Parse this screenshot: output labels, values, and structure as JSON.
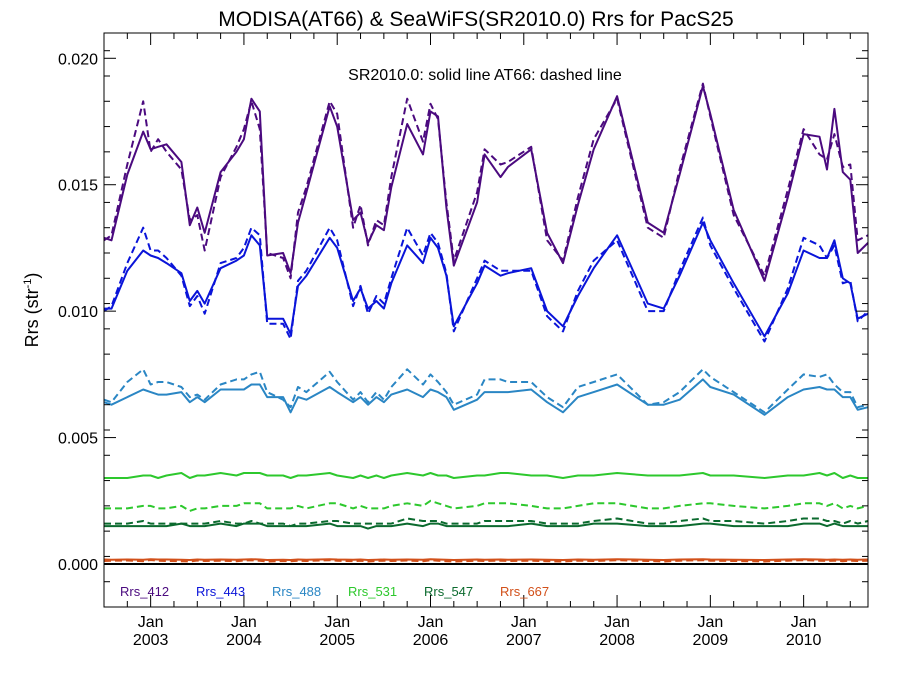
{
  "chart_data": {
    "type": "line",
    "title": "MODISA(AT66) & SeaWiFS(SR2010.0)  Rrs for PacS25",
    "annotation": "SR2010.0: solid line   AT66: dashed line",
    "ylabel": "Rrs (str",
    "ylabel_sup": "-1",
    "ylabel_close": ")",
    "ylim": [
      -0.0017,
      0.021
    ],
    "xlim": [
      2002.5,
      2010.69
    ],
    "yticks": [
      {
        "value": 0.0,
        "label": "0.000"
      },
      {
        "value": 0.005,
        "label": "0.005"
      },
      {
        "value": 0.01,
        "label": "0.010"
      },
      {
        "value": 0.015,
        "label": "0.015"
      },
      {
        "value": 0.02,
        "label": "0.020"
      }
    ],
    "xticks": [
      {
        "value": 2003.0,
        "label": "Jan",
        "year": "2003"
      },
      {
        "value": 2004.0,
        "label": "Jan",
        "year": "2004"
      },
      {
        "value": 2005.0,
        "label": "Jan",
        "year": "2005"
      },
      {
        "value": 2006.0,
        "label": "Jan",
        "year": "2006"
      },
      {
        "value": 2007.0,
        "label": "Jan",
        "year": "2007"
      },
      {
        "value": 2008.0,
        "label": "Jan",
        "year": "2008"
      },
      {
        "value": 2009.0,
        "label": "Jan",
        "year": "2009"
      },
      {
        "value": 2010.0,
        "label": "Jan",
        "year": "2010"
      }
    ],
    "x": [
      2002.5,
      2002.58,
      2002.75,
      2002.92,
      2003.0,
      2003.08,
      2003.17,
      2003.33,
      2003.42,
      2003.5,
      2003.58,
      2003.75,
      2003.92,
      2004.0,
      2004.08,
      2004.17,
      2004.25,
      2004.42,
      2004.5,
      2004.58,
      2004.67,
      2004.92,
      2005.0,
      2005.17,
      2005.25,
      2005.33,
      2005.42,
      2005.5,
      2005.58,
      2005.75,
      2005.92,
      2006.0,
      2006.08,
      2006.17,
      2006.25,
      2006.5,
      2006.58,
      2006.75,
      2006.83,
      2007.08,
      2007.25,
      2007.42,
      2007.58,
      2007.75,
      2008.0,
      2008.33,
      2008.5,
      2008.67,
      2008.92,
      2009.0,
      2009.25,
      2009.58,
      2009.83,
      2010.0,
      2010.17,
      2010.25,
      2010.33,
      2010.42,
      2010.5,
      2010.58,
      2010.69
    ],
    "series": [
      {
        "name": "Rrs_412",
        "color": "#4B0A7F",
        "solid": [
          0.0129,
          0.0128,
          0.0154,
          0.0171,
          0.0164,
          0.0165,
          0.0166,
          0.0159,
          0.0134,
          0.0141,
          0.0131,
          0.0155,
          0.0163,
          0.0168,
          0.0184,
          0.0179,
          0.0122,
          0.0123,
          0.0115,
          0.0135,
          0.0147,
          0.0181,
          0.0173,
          0.0136,
          0.0139,
          0.0127,
          0.0134,
          0.0132,
          0.0149,
          0.0174,
          0.0162,
          0.0179,
          0.0177,
          0.0141,
          0.0118,
          0.0143,
          0.0162,
          0.0153,
          0.0157,
          0.0164,
          0.0131,
          0.0119,
          0.0142,
          0.0164,
          0.0185,
          0.0135,
          0.0131,
          0.0154,
          0.0189,
          0.0178,
          0.014,
          0.0112,
          0.0145,
          0.017,
          0.0169,
          0.0156,
          0.018,
          0.0155,
          0.0152,
          0.0123,
          0.0127
        ],
        "dashed": [
          0.0128,
          0.013,
          0.0158,
          0.0183,
          0.0163,
          0.0168,
          0.0163,
          0.0156,
          0.0136,
          0.0138,
          0.0124,
          0.0153,
          0.0165,
          0.0172,
          0.0183,
          0.0172,
          0.0123,
          0.0121,
          0.0113,
          0.0139,
          0.0149,
          0.0183,
          0.0178,
          0.0133,
          0.0142,
          0.0126,
          0.0136,
          0.0134,
          0.0153,
          0.0184,
          0.0167,
          0.0182,
          0.0176,
          0.0143,
          0.012,
          0.0147,
          0.0164,
          0.0158,
          0.0159,
          0.0165,
          0.0128,
          0.012,
          0.0145,
          0.0168,
          0.0184,
          0.0133,
          0.0129,
          0.0156,
          0.019,
          0.0177,
          0.0138,
          0.0114,
          0.0148,
          0.0172,
          0.0162,
          0.016,
          0.017,
          0.0157,
          0.0158,
          0.0128,
          0.013
        ]
      },
      {
        "name": "Rrs_443",
        "color": "#0A14D9",
        "solid": [
          0.0101,
          0.0101,
          0.0116,
          0.0124,
          0.0122,
          0.0121,
          0.0119,
          0.0115,
          0.0104,
          0.0108,
          0.0103,
          0.0117,
          0.012,
          0.0122,
          0.013,
          0.0126,
          0.0097,
          0.0097,
          0.0091,
          0.011,
          0.0114,
          0.0129,
          0.0125,
          0.0104,
          0.0109,
          0.0101,
          0.0104,
          0.0101,
          0.0111,
          0.0126,
          0.0119,
          0.0129,
          0.0125,
          0.0114,
          0.0094,
          0.0111,
          0.0118,
          0.0114,
          0.0115,
          0.0117,
          0.01,
          0.0094,
          0.0106,
          0.0117,
          0.013,
          0.0103,
          0.0101,
          0.0114,
          0.0135,
          0.0128,
          0.0111,
          0.009,
          0.0107,
          0.0124,
          0.0121,
          0.0121,
          0.0128,
          0.0113,
          0.0111,
          0.0097,
          0.0099
        ],
        "dashed": [
          0.01,
          0.0102,
          0.0119,
          0.0133,
          0.0124,
          0.0124,
          0.0121,
          0.0114,
          0.0102,
          0.0106,
          0.0099,
          0.0119,
          0.0121,
          0.0125,
          0.0133,
          0.013,
          0.0095,
          0.0095,
          0.0089,
          0.0112,
          0.0116,
          0.0133,
          0.0128,
          0.0102,
          0.011,
          0.0099,
          0.0106,
          0.0103,
          0.0113,
          0.0133,
          0.0122,
          0.0131,
          0.0127,
          0.0115,
          0.0092,
          0.0113,
          0.012,
          0.0116,
          0.0116,
          0.0116,
          0.0098,
          0.0092,
          0.0108,
          0.012,
          0.0128,
          0.01,
          0.01,
          0.0116,
          0.0137,
          0.0126,
          0.0109,
          0.0088,
          0.0109,
          0.0129,
          0.0126,
          0.0121,
          0.0126,
          0.0111,
          0.0112,
          0.0096,
          0.01
        ]
      },
      {
        "name": "Rrs_488",
        "color": "#2A86C4",
        "solid": [
          0.0064,
          0.0063,
          0.0066,
          0.0069,
          0.0068,
          0.0067,
          0.0067,
          0.0068,
          0.0064,
          0.0066,
          0.0064,
          0.0069,
          0.0069,
          0.0069,
          0.0071,
          0.0071,
          0.0066,
          0.0066,
          0.006,
          0.0066,
          0.0065,
          0.007,
          0.0068,
          0.0064,
          0.0066,
          0.0063,
          0.0066,
          0.0064,
          0.0067,
          0.0069,
          0.0066,
          0.0069,
          0.0068,
          0.0066,
          0.0061,
          0.0065,
          0.0068,
          0.0068,
          0.0068,
          0.0069,
          0.0064,
          0.006,
          0.0066,
          0.0068,
          0.0071,
          0.0063,
          0.0063,
          0.0065,
          0.0073,
          0.007,
          0.0067,
          0.0059,
          0.0066,
          0.0069,
          0.007,
          0.0069,
          0.0069,
          0.0066,
          0.0066,
          0.0061,
          0.0062
        ],
        "dashed": [
          0.0065,
          0.0064,
          0.0072,
          0.0077,
          0.0071,
          0.0072,
          0.0072,
          0.007,
          0.0066,
          0.0067,
          0.0065,
          0.0071,
          0.0073,
          0.0073,
          0.0075,
          0.0076,
          0.0068,
          0.0065,
          0.0062,
          0.007,
          0.0068,
          0.0076,
          0.0072,
          0.0065,
          0.0068,
          0.0064,
          0.0068,
          0.0065,
          0.007,
          0.0077,
          0.0071,
          0.0075,
          0.0072,
          0.0068,
          0.0063,
          0.0067,
          0.0073,
          0.0073,
          0.0072,
          0.0072,
          0.0066,
          0.0062,
          0.007,
          0.0072,
          0.0075,
          0.0063,
          0.0064,
          0.0068,
          0.0077,
          0.0074,
          0.0068,
          0.006,
          0.0069,
          0.0075,
          0.0074,
          0.0075,
          0.0071,
          0.0068,
          0.0068,
          0.0062,
          0.0063
        ]
      },
      {
        "name": "Rrs_531",
        "color": "#2DC82D",
        "solid": [
          0.0034,
          0.0034,
          0.0034,
          0.0035,
          0.0035,
          0.0034,
          0.0035,
          0.0036,
          0.0034,
          0.0035,
          0.0035,
          0.0036,
          0.0035,
          0.0036,
          0.0036,
          0.0036,
          0.0035,
          0.0035,
          0.0034,
          0.0035,
          0.0035,
          0.0036,
          0.0035,
          0.0034,
          0.0035,
          0.0034,
          0.0035,
          0.0034,
          0.0035,
          0.0036,
          0.0035,
          0.0036,
          0.0035,
          0.0035,
          0.0034,
          0.0035,
          0.0035,
          0.0036,
          0.0036,
          0.0035,
          0.0035,
          0.0034,
          0.0035,
          0.0035,
          0.0036,
          0.0035,
          0.0035,
          0.0035,
          0.0036,
          0.0035,
          0.0035,
          0.0034,
          0.0035,
          0.0035,
          0.0036,
          0.0035,
          0.0036,
          0.0034,
          0.0035,
          0.0034,
          0.0034
        ],
        "dashed": [
          0.0022,
          0.0022,
          0.0022,
          0.0023,
          0.0023,
          0.0022,
          0.0022,
          0.0023,
          0.0021,
          0.0022,
          0.0022,
          0.0023,
          0.0023,
          0.0024,
          0.0024,
          0.0024,
          0.0022,
          0.0022,
          0.0022,
          0.0023,
          0.0022,
          0.0024,
          0.0024,
          0.0022,
          0.0023,
          0.0022,
          0.0022,
          0.0022,
          0.0023,
          0.0024,
          0.0023,
          0.0025,
          0.0024,
          0.0023,
          0.0022,
          0.0023,
          0.0024,
          0.0024,
          0.0024,
          0.0023,
          0.0022,
          0.0022,
          0.0023,
          0.0024,
          0.0024,
          0.0022,
          0.0022,
          0.0023,
          0.0024,
          0.0024,
          0.0023,
          0.0022,
          0.0023,
          0.0024,
          0.0024,
          0.0023,
          0.0024,
          0.0022,
          0.0023,
          0.0022,
          0.0023
        ]
      },
      {
        "name": "Rrs_547",
        "color": "#0B6A2E",
        "solid": [
          0.0015,
          0.0015,
          0.0015,
          0.0015,
          0.0015,
          0.0015,
          0.0015,
          0.0016,
          0.0015,
          0.0015,
          0.0015,
          0.0016,
          0.0015,
          0.0016,
          0.0016,
          0.0016,
          0.0015,
          0.0015,
          0.0015,
          0.0015,
          0.0015,
          0.0016,
          0.0015,
          0.0015,
          0.0015,
          0.0014,
          0.0015,
          0.0015,
          0.0015,
          0.0016,
          0.0015,
          0.0016,
          0.0016,
          0.0015,
          0.0015,
          0.0015,
          0.0015,
          0.0015,
          0.0015,
          0.0016,
          0.0015,
          0.0015,
          0.0015,
          0.0016,
          0.0016,
          0.0015,
          0.0015,
          0.0015,
          0.0016,
          0.0016,
          0.0015,
          0.0015,
          0.0015,
          0.0016,
          0.0016,
          0.0015,
          0.0016,
          0.0015,
          0.0015,
          0.0015,
          0.0015
        ],
        "dashed": [
          0.0016,
          0.0016,
          0.0016,
          0.0017,
          0.0016,
          0.0016,
          0.0016,
          0.0016,
          0.0016,
          0.0016,
          0.0016,
          0.0017,
          0.0016,
          0.0016,
          0.0017,
          0.0016,
          0.0016,
          0.0016,
          0.0015,
          0.0016,
          0.0016,
          0.0017,
          0.0017,
          0.0016,
          0.0016,
          0.0016,
          0.0016,
          0.0016,
          0.0016,
          0.0018,
          0.0017,
          0.0017,
          0.0017,
          0.0016,
          0.0016,
          0.0016,
          0.0017,
          0.0017,
          0.0017,
          0.0017,
          0.0016,
          0.0016,
          0.0016,
          0.0017,
          0.0018,
          0.0016,
          0.0016,
          0.0017,
          0.0018,
          0.0017,
          0.0017,
          0.0016,
          0.0017,
          0.0018,
          0.0018,
          0.0017,
          0.0017,
          0.0016,
          0.0017,
          0.0016,
          0.0017
        ]
      },
      {
        "name": "Rrs_667",
        "color": "#D2501A",
        "solid": [
          0.00018,
          0.00017,
          0.00018,
          0.00017,
          0.00019,
          0.00018,
          0.00018,
          0.00017,
          0.00016,
          0.00018,
          0.00017,
          0.00018,
          0.00017,
          0.00018,
          0.00019,
          0.00018,
          0.00016,
          0.00017,
          0.00016,
          0.00018,
          0.00017,
          0.00019,
          0.00018,
          0.00017,
          0.00018,
          0.00016,
          0.00017,
          0.00018,
          0.00017,
          0.00018,
          0.00017,
          0.00019,
          0.00018,
          0.00017,
          0.00016,
          0.00018,
          0.00017,
          0.00018,
          0.00017,
          0.00018,
          0.00017,
          0.00016,
          0.00018,
          0.00017,
          0.00019,
          0.00017,
          0.00016,
          0.00018,
          0.00019,
          0.00018,
          0.00017,
          0.00016,
          0.00018,
          0.00019,
          0.00018,
          0.00017,
          0.00018,
          0.00017,
          0.00018,
          0.00017,
          0.00018
        ],
        "dashed": [
          0.00012,
          0.00013,
          0.00014,
          0.00011,
          0.00016,
          0.00013,
          0.00012,
          0.00011,
          0.0001,
          0.00014,
          0.00012,
          0.00013,
          0.00011,
          0.00014,
          0.00015,
          0.00013,
          0.0001,
          0.00012,
          0.00011,
          0.00013,
          0.00012,
          0.00015,
          0.00013,
          0.00011,
          0.00013,
          0.0001,
          0.00012,
          0.00013,
          0.00012,
          0.00014,
          0.00011,
          0.00015,
          0.00013,
          0.00011,
          0.0001,
          0.00013,
          0.00012,
          0.00013,
          0.00012,
          0.00013,
          0.00011,
          0.0001,
          0.00013,
          0.00012,
          0.00015,
          0.00012,
          0.0001,
          0.00013,
          0.00015,
          0.00013,
          0.00012,
          0.0001,
          0.00013,
          0.00015,
          0.00013,
          0.00012,
          0.00013,
          0.00011,
          0.00013,
          0.00012,
          0.00013
        ]
      }
    ]
  }
}
